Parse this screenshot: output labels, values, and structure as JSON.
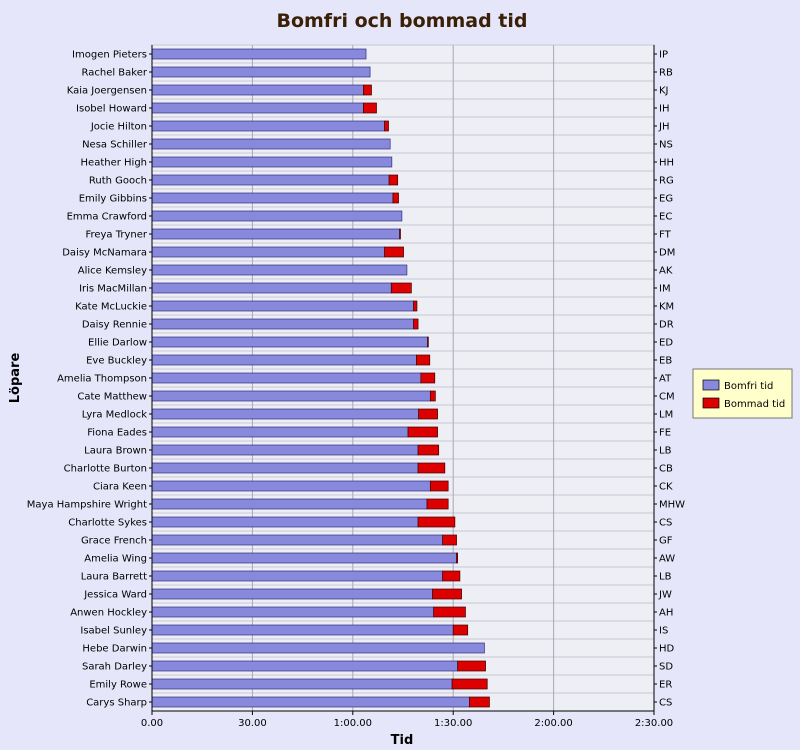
{
  "chart_data": {
    "type": "bar",
    "orientation": "horizontal",
    "stacked": true,
    "title": "Bomfri och bommad tid",
    "xlabel": "Tid",
    "ylabel": "Löpare",
    "xlim_seconds": [
      0,
      9000
    ],
    "xticks": [
      "0.00",
      "30.00",
      "1:00.00",
      "1:30.00",
      "2:00.00",
      "2:30.00"
    ],
    "grid": true,
    "legend_position": "right",
    "colors": {
      "bomfri": "#8888dd",
      "bommad": "#dd0000",
      "plot_bg": "#eeeef5",
      "page_bg": "#e6e6fa",
      "legend_bg": "#ffffcc",
      "title": "#3b2008"
    },
    "series": [
      {
        "name": "Bomfri tid",
        "unit": "seconds"
      },
      {
        "name": "Bommad tid",
        "unit": "seconds"
      }
    ],
    "runners": [
      {
        "name": "Imogen Pieters",
        "abbr": "IP",
        "bomfri": 3837,
        "bommad": 0
      },
      {
        "name": "Rachel Baker",
        "abbr": "RB",
        "bomfri": 3910,
        "bommad": 0
      },
      {
        "name": "Kaia Joergensen",
        "abbr": "KJ",
        "bomfri": 3790,
        "bommad": 145
      },
      {
        "name": "Isobel Howard",
        "abbr": "IH",
        "bomfri": 3790,
        "bommad": 235
      },
      {
        "name": "Jocie Hilton",
        "abbr": "JH",
        "bomfri": 4170,
        "bommad": 70
      },
      {
        "name": "Nesa Schiller",
        "abbr": "NS",
        "bomfri": 4270,
        "bommad": 0
      },
      {
        "name": "Heather High",
        "abbr": "HH",
        "bomfri": 4300,
        "bommad": 0
      },
      {
        "name": "Ruth Gooch",
        "abbr": "RG",
        "bomfri": 4250,
        "bommad": 155
      },
      {
        "name": "Emily Gibbins",
        "abbr": "EG",
        "bomfri": 4320,
        "bommad": 100
      },
      {
        "name": "Emma Crawford",
        "abbr": "EC",
        "bomfri": 4480,
        "bommad": 0
      },
      {
        "name": "Freya Tryner",
        "abbr": "FT",
        "bomfri": 4440,
        "bommad": 15
      },
      {
        "name": "Daisy McNamara",
        "abbr": "DM",
        "bomfri": 4170,
        "bommad": 340
      },
      {
        "name": "Alice Kemsley",
        "abbr": "AK",
        "bomfri": 4570,
        "bommad": 0
      },
      {
        "name": "Iris MacMillan",
        "abbr": "IM",
        "bomfri": 4290,
        "bommad": 360
      },
      {
        "name": "Kate McLuckie",
        "abbr": "KM",
        "bomfri": 4690,
        "bommad": 60
      },
      {
        "name": "Daisy Rennie",
        "abbr": "DR",
        "bomfri": 4690,
        "bommad": 80
      },
      {
        "name": "Ellie Darlow",
        "abbr": "ED",
        "bomfri": 4940,
        "bommad": 15
      },
      {
        "name": "Eve Buckley",
        "abbr": "EB",
        "bomfri": 4740,
        "bommad": 240
      },
      {
        "name": "Amelia Thompson",
        "abbr": "AT",
        "bomfri": 4820,
        "bommad": 250
      },
      {
        "name": "Cate Matthew",
        "abbr": "CM",
        "bomfri": 4990,
        "bommad": 90
      },
      {
        "name": "Lyra Medlock",
        "abbr": "LM",
        "bomfri": 4780,
        "bommad": 340
      },
      {
        "name": "Fiona Eades",
        "abbr": "FE",
        "bomfri": 4590,
        "bommad": 530
      },
      {
        "name": "Laura Brown",
        "abbr": "LB",
        "bomfri": 4770,
        "bommad": 370
      },
      {
        "name": "Charlotte Burton",
        "abbr": "CB",
        "bomfri": 4770,
        "bommad": 480
      },
      {
        "name": "Ciara Keen",
        "abbr": "CK",
        "bomfri": 4990,
        "bommad": 320
      },
      {
        "name": "Maya Hampshire Wright",
        "abbr": "MHW",
        "bomfri": 4930,
        "bommad": 380
      },
      {
        "name": "Charlotte Sykes",
        "abbr": "CS",
        "bomfri": 4770,
        "bommad": 660
      },
      {
        "name": "Grace French",
        "abbr": "GF",
        "bomfri": 5210,
        "bommad": 250
      },
      {
        "name": "Amelia Wing",
        "abbr": "AW",
        "bomfri": 5460,
        "bommad": 20
      },
      {
        "name": "Laura Barrett",
        "abbr": "LB",
        "bomfri": 5210,
        "bommad": 310
      },
      {
        "name": "Jessica Ward",
        "abbr": "JW",
        "bomfri": 5030,
        "bommad": 520
      },
      {
        "name": "Anwen Hockley",
        "abbr": "AH",
        "bomfri": 5050,
        "bommad": 570
      },
      {
        "name": "Isabel Sunley",
        "abbr": "IS",
        "bomfri": 5400,
        "bommad": 260
      },
      {
        "name": "Hebe Darwin",
        "abbr": "HD",
        "bomfri": 5960,
        "bommad": 0
      },
      {
        "name": "Sarah Darley",
        "abbr": "SD",
        "bomfri": 5480,
        "bommad": 500
      },
      {
        "name": "Emily Rowe",
        "abbr": "ER",
        "bomfri": 5380,
        "bommad": 630
      },
      {
        "name": "Carys Sharp",
        "abbr": "CS",
        "bomfri": 5690,
        "bommad": 360
      }
    ]
  }
}
